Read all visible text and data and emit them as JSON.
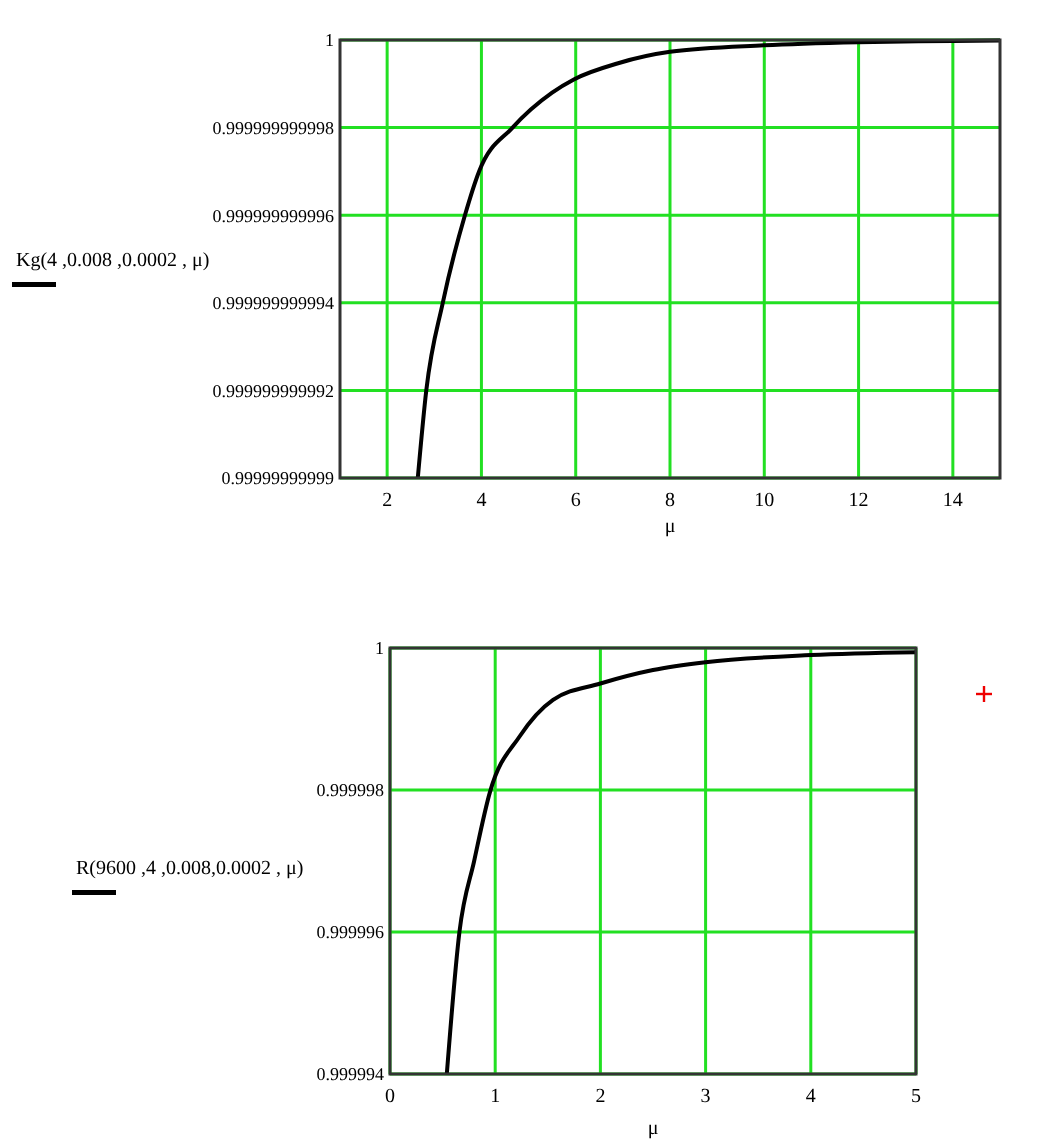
{
  "chart_data": [
    {
      "type": "line",
      "ylabel": "Kg(4 ,0.008 ,0.0002 , μ)",
      "xlabel": "μ",
      "xlim": [
        1,
        15
      ],
      "xticks": [
        2,
        4,
        6,
        8,
        10,
        12,
        14
      ],
      "ylim": [
        0.99999999999,
        1
      ],
      "yticks": [
        {
          "value": 0.99999999999,
          "label": "0.99999999999"
        },
        {
          "value": 0.999999999992,
          "label": "0.999999999992"
        },
        {
          "value": 0.999999999994,
          "label": "0.999999999994"
        },
        {
          "value": 0.999999999996,
          "label": "0.999999999996"
        },
        {
          "value": 0.999999999998,
          "label": "0.999999999998"
        },
        {
          "value": 1,
          "label": "1"
        }
      ],
      "grid": true,
      "series": [
        {
          "color": "#000000",
          "x": [
            2.65,
            2.83,
            3.18,
            3.65,
            3.95,
            4.66,
            5.5,
            5.96,
            6.9,
            8,
            10,
            12,
            14,
            15
          ],
          "values": [
            0.99999999999,
            0.999999999992,
            0.999999999994,
            0.999999999996,
            0.999999999997,
            0.999999999998,
            0.9999999999988,
            0.9999999999991,
            0.99999999999947,
            0.99999999999973,
            0.99999999999988,
            0.99999999999995,
            0.99999999999998,
            0.99999999999999
          ]
        }
      ]
    },
    {
      "type": "line",
      "ylabel": "R(9600 ,4 ,0.008,0.0002 , μ)",
      "xlabel": "μ",
      "xlim": [
        0,
        5
      ],
      "xticks": [
        0,
        1,
        2,
        3,
        4,
        5
      ],
      "ylim": [
        0.999994,
        1
      ],
      "yticks": [
        0.999994,
        0.999996,
        0.999998,
        1
      ],
      "grid": true,
      "series": [
        {
          "color": "#000000",
          "x": [
            0.54,
            0.66,
            0.8,
            0.95,
            1.23,
            1.55,
            2,
            2.5,
            3,
            4,
            5
          ],
          "values": [
            0.999994,
            0.999996,
            0.999997,
            0.99999797,
            0.99999875,
            0.99999927,
            0.9999995,
            0.99999969,
            0.9999998,
            0.9999999,
            0.99999994
          ]
        }
      ]
    }
  ]
}
